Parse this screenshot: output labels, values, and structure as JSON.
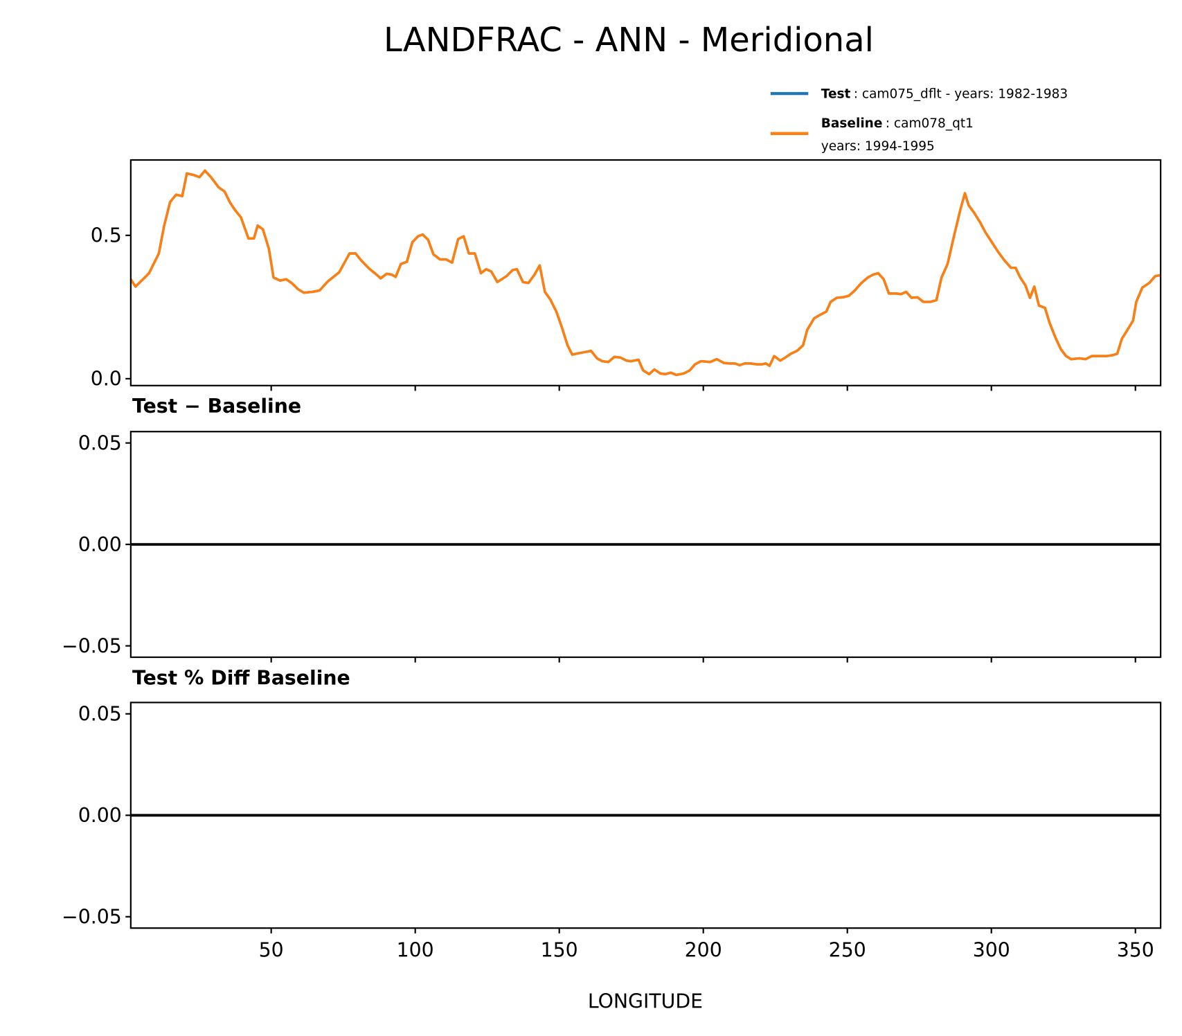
{
  "chart_data": {
    "type": "line",
    "title": "LANDFRAC - ANN - Meridional",
    "xlabel": "LONGITUDE",
    "xlim": [
      1.25,
      358.75
    ],
    "x_ticks": [
      50,
      100,
      150,
      200,
      250,
      300,
      350
    ],
    "x_tick_labels": [
      "50",
      "100",
      "150",
      "200",
      "250",
      "300",
      "350"
    ],
    "legend": {
      "placement": "top-right (above top panel)",
      "entries": [
        {
          "bold": "Test",
          "text": ": cam075_dflt - years: 1982-1983",
          "color": "#1f77b4"
        },
        {
          "bold": "Baseline",
          "text": ": cam078_qt1",
          "text2": "years: 1994-1995",
          "color": "#ff7f0e"
        }
      ]
    },
    "panels": [
      {
        "name": "values",
        "title": "",
        "ylim": [
          -0.024,
          0.763
        ],
        "y_ticks": [
          0.0,
          0.5
        ],
        "y_tick_labels": [
          "0.0",
          "0.5"
        ],
        "x": [
          1.25,
          2.9,
          5.0,
          7.6,
          11.0,
          12.8,
          14.9,
          17.0,
          19.1,
          20.7,
          23.0,
          25.1,
          27.0,
          29.1,
          31.7,
          33.8,
          35.6,
          37.4,
          39.5,
          40.8,
          42.1,
          44.0,
          45.3,
          47.1,
          49.2,
          50.8,
          53.1,
          55.2,
          57.3,
          59.2,
          61.3,
          64.4,
          66.8,
          69.6,
          73.6,
          75.9,
          77.2,
          79.3,
          81.2,
          84.0,
          86.6,
          88.0,
          90.1,
          91.9,
          93.2,
          95.0,
          97.1,
          99.0,
          101.0,
          102.6,
          104.5,
          106.3,
          108.6,
          110.7,
          112.8,
          114.9,
          116.8,
          118.6,
          120.7,
          122.8,
          124.6,
          126.4,
          128.5,
          131.7,
          133.8,
          135.3,
          137.4,
          139.3,
          141.4,
          143.2,
          145.0,
          146.9,
          149.0,
          150.8,
          152.9,
          154.5,
          156.8,
          161.0,
          163.1,
          164.9,
          167.0,
          169.1,
          171.2,
          173.3,
          174.9,
          177.5,
          179.1,
          181.2,
          183.0,
          185.1,
          186.9,
          188.7,
          190.6,
          193.2,
          195.3,
          197.1,
          199.2,
          202.4,
          204.7,
          207.1,
          209.2,
          211.0,
          212.6,
          214.4,
          216.5,
          218.6,
          220.2,
          221.7,
          223.0,
          224.6,
          226.7,
          228.5,
          230.4,
          232.5,
          234.6,
          236.1,
          238.5,
          240.8,
          242.7,
          244.2,
          246.3,
          248.4,
          250.5,
          252.6,
          254.7,
          257.1,
          258.9,
          260.7,
          262.6,
          264.4,
          267.0,
          268.6,
          270.4,
          272.3,
          274.3,
          276.4,
          278.8,
          280.9,
          282.7,
          284.8,
          287.2,
          289.3,
          290.8,
          292.1,
          294.0,
          296.1,
          297.9,
          300.3,
          302.4,
          304.5,
          306.8,
          308.4,
          310.0,
          311.8,
          313.4,
          314.9,
          316.5,
          318.6,
          320.2,
          322.3,
          324.1,
          325.9,
          327.7,
          330.6,
          332.7,
          334.8,
          337.9,
          340.0,
          342.1,
          343.7,
          345.3,
          347.6,
          349.2,
          350.3,
          352.4,
          354.8,
          356.9,
          358.75
        ],
        "series": [
          {
            "name": "Test",
            "color": "#1f77b4",
            "y": [
              0.347,
              0.321,
              0.342,
              0.368,
              0.437,
              0.532,
              0.616,
              0.642,
              0.637,
              0.716,
              0.711,
              0.703,
              0.726,
              0.703,
              0.668,
              0.653,
              0.616,
              0.589,
              0.563,
              0.526,
              0.489,
              0.489,
              0.534,
              0.521,
              0.453,
              0.353,
              0.342,
              0.347,
              0.332,
              0.313,
              0.3,
              0.303,
              0.308,
              0.339,
              0.371,
              0.413,
              0.437,
              0.437,
              0.413,
              0.384,
              0.363,
              0.35,
              0.366,
              0.363,
              0.355,
              0.4,
              0.408,
              0.476,
              0.497,
              0.503,
              0.484,
              0.434,
              0.416,
              0.416,
              0.405,
              0.487,
              0.497,
              0.437,
              0.437,
              0.368,
              0.382,
              0.374,
              0.337,
              0.358,
              0.379,
              0.382,
              0.337,
              0.334,
              0.363,
              0.395,
              0.303,
              0.276,
              0.234,
              0.182,
              0.116,
              0.084,
              0.089,
              0.097,
              0.071,
              0.061,
              0.058,
              0.076,
              0.074,
              0.063,
              0.061,
              0.066,
              0.029,
              0.016,
              0.032,
              0.018,
              0.016,
              0.021,
              0.013,
              0.018,
              0.029,
              0.05,
              0.061,
              0.058,
              0.068,
              0.055,
              0.053,
              0.053,
              0.047,
              0.053,
              0.053,
              0.05,
              0.05,
              0.053,
              0.045,
              0.079,
              0.063,
              0.074,
              0.087,
              0.097,
              0.116,
              0.171,
              0.211,
              0.224,
              0.234,
              0.268,
              0.282,
              0.284,
              0.289,
              0.308,
              0.332,
              0.353,
              0.363,
              0.368,
              0.347,
              0.297,
              0.297,
              0.295,
              0.303,
              0.282,
              0.284,
              0.268,
              0.268,
              0.274,
              0.353,
              0.4,
              0.505,
              0.592,
              0.647,
              0.605,
              0.579,
              0.545,
              0.511,
              0.474,
              0.442,
              0.413,
              0.387,
              0.387,
              0.353,
              0.326,
              0.282,
              0.321,
              0.255,
              0.247,
              0.195,
              0.142,
              0.103,
              0.079,
              0.068,
              0.071,
              0.068,
              0.079,
              0.079,
              0.079,
              0.082,
              0.087,
              0.139,
              0.176,
              0.203,
              0.268,
              0.318,
              0.334,
              0.358,
              0.361
            ]
          },
          {
            "name": "Baseline",
            "color": "#ff7f0e",
            "y": [
              0.347,
              0.321,
              0.342,
              0.368,
              0.437,
              0.532,
              0.616,
              0.642,
              0.637,
              0.716,
              0.711,
              0.703,
              0.726,
              0.703,
              0.668,
              0.653,
              0.616,
              0.589,
              0.563,
              0.526,
              0.489,
              0.489,
              0.534,
              0.521,
              0.453,
              0.353,
              0.342,
              0.347,
              0.332,
              0.313,
              0.3,
              0.303,
              0.308,
              0.339,
              0.371,
              0.413,
              0.437,
              0.437,
              0.413,
              0.384,
              0.363,
              0.35,
              0.366,
              0.363,
              0.355,
              0.4,
              0.408,
              0.476,
              0.497,
              0.503,
              0.484,
              0.434,
              0.416,
              0.416,
              0.405,
              0.487,
              0.497,
              0.437,
              0.437,
              0.368,
              0.382,
              0.374,
              0.337,
              0.358,
              0.379,
              0.382,
              0.337,
              0.334,
              0.363,
              0.395,
              0.303,
              0.276,
              0.234,
              0.182,
              0.116,
              0.084,
              0.089,
              0.097,
              0.071,
              0.061,
              0.058,
              0.076,
              0.074,
              0.063,
              0.061,
              0.066,
              0.029,
              0.016,
              0.032,
              0.018,
              0.016,
              0.021,
              0.013,
              0.018,
              0.029,
              0.05,
              0.061,
              0.058,
              0.068,
              0.055,
              0.053,
              0.053,
              0.047,
              0.053,
              0.053,
              0.05,
              0.05,
              0.053,
              0.045,
              0.079,
              0.063,
              0.074,
              0.087,
              0.097,
              0.116,
              0.171,
              0.211,
              0.224,
              0.234,
              0.268,
              0.282,
              0.284,
              0.289,
              0.308,
              0.332,
              0.353,
              0.363,
              0.368,
              0.347,
              0.297,
              0.297,
              0.295,
              0.303,
              0.282,
              0.284,
              0.268,
              0.268,
              0.274,
              0.353,
              0.4,
              0.505,
              0.592,
              0.647,
              0.605,
              0.579,
              0.545,
              0.511,
              0.474,
              0.442,
              0.413,
              0.387,
              0.387,
              0.353,
              0.326,
              0.282,
              0.321,
              0.255,
              0.247,
              0.195,
              0.142,
              0.103,
              0.079,
              0.068,
              0.071,
              0.068,
              0.079,
              0.079,
              0.079,
              0.082,
              0.087,
              0.139,
              0.176,
              0.203,
              0.268,
              0.318,
              0.334,
              0.358,
              0.361
            ]
          }
        ]
      },
      {
        "name": "difference",
        "title": "Test − Baseline",
        "ylim": [
          -0.0556,
          0.0556
        ],
        "y_ticks": [
          -0.05,
          0.0,
          0.05
        ],
        "y_tick_labels": [
          "−0.05",
          "0.00",
          "0.05"
        ],
        "zero_line": true,
        "series": []
      },
      {
        "name": "percent-difference",
        "title": "Test % Diff Baseline",
        "ylim": [
          -0.0556,
          0.0556
        ],
        "y_ticks": [
          -0.05,
          0.0,
          0.05
        ],
        "y_tick_labels": [
          "−0.05",
          "0.00",
          "0.05"
        ],
        "zero_line": true,
        "series": []
      }
    ]
  }
}
